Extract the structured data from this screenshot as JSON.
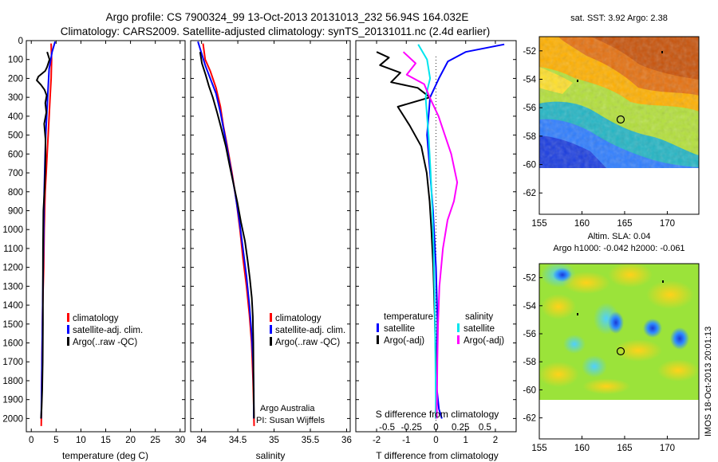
{
  "header": {
    "title_line1": "Argo profile: CS 7900324_99 13-Oct-2013 20131013_232 56.94S 164.032E",
    "title_line2": "Climatology: CARS2009. Satellite-adjusted climatology: synTS_20131011.nc (2.4d earlier)"
  },
  "colors": {
    "climatology": "#ff0000",
    "satellite": "#0000ff",
    "argo": "#000000",
    "sat_salinity": "#00e5ee",
    "argo_salinity": "#ff00ff"
  },
  "chart_data": [
    {
      "id": "temperature",
      "type": "line",
      "xlabel": "temperature (deg C)",
      "ylabel": "",
      "xlim": [
        -1,
        31
      ],
      "ylim": [
        2070,
        0
      ],
      "xticks": [
        0,
        5,
        10,
        15,
        20,
        25,
        30
      ],
      "yticks": [
        0,
        100,
        200,
        300,
        400,
        500,
        600,
        700,
        800,
        900,
        1000,
        1100,
        1200,
        1300,
        1400,
        1500,
        1600,
        1700,
        1800,
        1900,
        2000
      ],
      "legend": [
        "climatology",
        "satellite-adj. clim.",
        "Argo(..raw -QC)"
      ],
      "legend_position": "lower-right",
      "series": [
        {
          "name": "climatology",
          "color": "#ff0000",
          "x": [
            4.0,
            4.1,
            4.0,
            3.8,
            3.6,
            3.4,
            3.2,
            3.0,
            2.8,
            2.6,
            2.5,
            2.3,
            2.2,
            2.1,
            2.05,
            2.0
          ],
          "y": [
            15,
            100,
            200,
            300,
            400,
            500,
            600,
            700,
            800,
            1000,
            1200,
            1400,
            1600,
            1800,
            1950,
            2040
          ]
        },
        {
          "name": "satellite-adj. clim.",
          "color": "#0000ff",
          "x": [
            4.8,
            4.2,
            3.6,
            3.3,
            3.1,
            2.9,
            2.8,
            2.7,
            2.6,
            2.5,
            2.4,
            2.3,
            2.2,
            2.1,
            2.0
          ],
          "y": [
            5,
            60,
            150,
            300,
            400,
            500,
            600,
            700,
            800,
            1000,
            1200,
            1400,
            1600,
            1800,
            2000
          ]
        },
        {
          "name": "Argo(..raw -QC)",
          "color": "#000000",
          "x": [
            3.2,
            3.6,
            3.1,
            2.8,
            1.5,
            1.2,
            2.0,
            2.6,
            3.0,
            2.8,
            3.1,
            2.7,
            2.9,
            2.8,
            2.7,
            2.6,
            2.5,
            2.45,
            2.4,
            2.3,
            2.2,
            2.15,
            2.1,
            2.05
          ],
          "y": [
            60,
            100,
            140,
            160,
            190,
            210,
            235,
            260,
            290,
            330,
            380,
            440,
            520,
            600,
            700,
            800,
            900,
            1100,
            1300,
            1500,
            1700,
            1850,
            1950,
            2000
          ]
        }
      ]
    },
    {
      "id": "salinity",
      "type": "line",
      "xlabel": "salinity",
      "ylabel": "",
      "xlim": [
        33.85,
        36.05
      ],
      "ylim": [
        2070,
        0
      ],
      "xticks": [
        34,
        34.5,
        35,
        35.5,
        36
      ],
      "xtick_labels": [
        "34",
        "34.5",
        "35",
        "35.5",
        "36"
      ],
      "legend": [
        "climatology",
        "satellite-adj. clim.",
        "Argo(..raw -QC)"
      ],
      "legend_position": "lower-right",
      "annotations": [
        "Argo Australia",
        "PI: Susan Wijffels"
      ],
      "series": [
        {
          "name": "climatology",
          "color": "#ff0000",
          "x": [
            34.02,
            34.05,
            34.12,
            34.2,
            34.26,
            34.3,
            34.35,
            34.42,
            34.48,
            34.53,
            34.57,
            34.62,
            34.66,
            34.69,
            34.71,
            34.72,
            34.725
          ],
          "y": [
            15,
            100,
            160,
            250,
            350,
            450,
            550,
            700,
            850,
            1000,
            1150,
            1300,
            1450,
            1600,
            1800,
            1950,
            2040
          ]
        },
        {
          "name": "satellite-adj. clim.",
          "color": "#0000ff",
          "x": [
            33.95,
            34.05,
            34.12,
            34.2,
            34.26,
            34.32,
            34.39,
            34.46,
            34.52,
            34.57,
            34.62,
            34.66,
            34.69,
            34.71,
            34.72,
            34.72
          ],
          "y": [
            5,
            130,
            200,
            280,
            380,
            500,
            650,
            800,
            950,
            1100,
            1250,
            1400,
            1550,
            1700,
            1850,
            2000
          ]
        },
        {
          "name": "Argo(..raw -QC)",
          "color": "#000000",
          "x": [
            33.98,
            34.0,
            34.05,
            34.1,
            34.16,
            34.22,
            34.27,
            34.33,
            34.38,
            34.44,
            34.5,
            34.55,
            34.6,
            34.63,
            34.66,
            34.69,
            34.71,
            34.72,
            34.72,
            34.72
          ],
          "y": [
            60,
            120,
            180,
            240,
            300,
            380,
            460,
            560,
            660,
            760,
            860,
            960,
            1060,
            1160,
            1260,
            1360,
            1460,
            1600,
            1800,
            2000
          ]
        }
      ]
    },
    {
      "id": "difference",
      "type": "line",
      "xlabel": "T difference from climatology",
      "ylabel": "",
      "title_bottom": "S difference from climatology",
      "xlim": [
        -2.7,
        2.7
      ],
      "ylim": [
        2070,
        0
      ],
      "xticks_T": [
        -2,
        -1,
        0,
        1,
        2
      ],
      "xticks_S": [
        -0.5,
        -0.25,
        0,
        0.25,
        0.5
      ],
      "xtick_S_labels": [
        "-0.5",
        "-0.25",
        "0",
        "0.25",
        "0.5"
      ],
      "legend_temperature": [
        "temperature",
        "satellite",
        "Argo(-adj)"
      ],
      "legend_salinity": [
        "salinity",
        "satellite",
        "Argo(-adj)"
      ],
      "legend_position": "lower-center",
      "series": [
        {
          "name": "satellite",
          "color": "#0000ff",
          "x": [
            2.3,
            1.0,
            0.4,
            0.1,
            -0.2,
            -0.3,
            -0.2,
            -0.1,
            0.0,
            0.05,
            0.0,
            0.1,
            0.2
          ],
          "y": [
            20,
            60,
            110,
            200,
            300,
            500,
            700,
            900,
            1200,
            1500,
            1800,
            1950,
            2000
          ]
        },
        {
          "name": "Argo(-adj)",
          "color": "#000000",
          "x": [
            -2.0,
            -1.6,
            -1.9,
            -1.2,
            -1.5,
            -0.6,
            -0.2,
            -1.3,
            -0.9,
            -0.5,
            -0.3,
            -0.2,
            -0.15,
            -0.1,
            -0.05,
            0.0,
            0.0
          ],
          "y": [
            60,
            90,
            130,
            170,
            220,
            250,
            300,
            350,
            450,
            560,
            700,
            850,
            1000,
            1200,
            1500,
            1800,
            2000
          ]
        },
        {
          "name": "satellite (S)",
          "color": "#00e5ee",
          "x": [
            -0.6,
            -0.3,
            -0.2,
            -0.35,
            -0.3,
            -0.25,
            -0.18,
            -0.12,
            -0.08,
            -0.04,
            -0.02,
            0.0
          ],
          "y": [
            20,
            100,
            200,
            300,
            400,
            500,
            700,
            900,
            1100,
            1400,
            1700,
            2000
          ]
        },
        {
          "name": "Argo(-adj) (S)",
          "color": "#ff00ff",
          "x": [
            -1.1,
            -0.7,
            -1.0,
            -0.4,
            -0.2,
            0.1,
            0.3,
            0.5,
            0.7,
            0.6,
            0.4,
            0.25,
            0.12,
            0.06,
            0.03,
            0.02
          ],
          "y": [
            60,
            120,
            180,
            230,
            300,
            400,
            500,
            600,
            750,
            850,
            950,
            1100,
            1300,
            1500,
            1700,
            2000
          ]
        }
      ]
    },
    {
      "id": "sst_map",
      "type": "heatmap",
      "title": "sat. SST: 3.92 Argo: 2.38",
      "xlim": [
        155,
        173.7
      ],
      "ylim": [
        -63.5,
        -51
      ],
      "xticks": [
        155,
        160,
        165,
        170
      ],
      "yticks": [
        -52,
        -54,
        -56,
        -58,
        -60,
        -62
      ],
      "profile_location": {
        "lon": 164.03,
        "lat": -56.94
      }
    },
    {
      "id": "sla_map",
      "type": "heatmap",
      "title_line1": "Altim. SLA: 0.04",
      "title_line2": "Argo h1000: -0.042 h2000: -0.061",
      "xlim": [
        155,
        173.7
      ],
      "ylim": [
        -63.5,
        -51
      ],
      "xticks": [
        155,
        160,
        165,
        170
      ],
      "yticks": [
        -52,
        -54,
        -56,
        -58,
        -60,
        -62
      ],
      "profile_location": {
        "lon": 164.03,
        "lat": -56.94
      },
      "side_label": "IMOS 18-Oct-2013 20:01:13"
    }
  ]
}
